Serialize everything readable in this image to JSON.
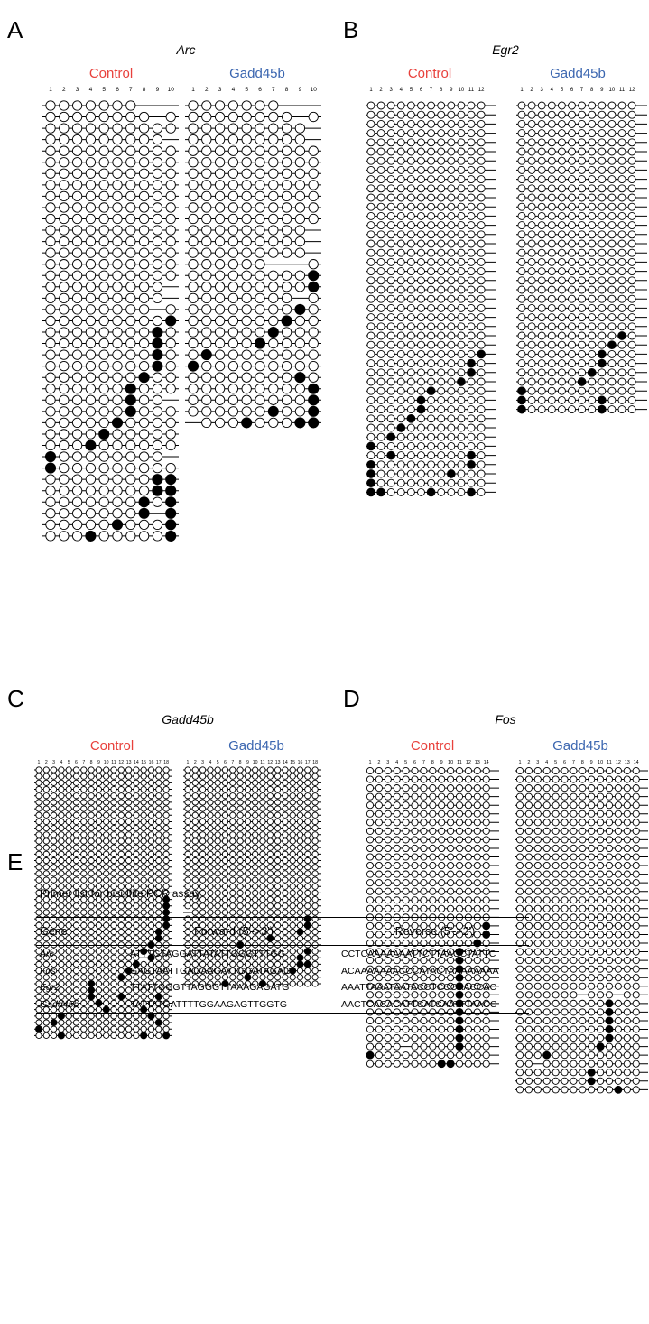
{
  "colors": {
    "control": "#e8413c",
    "gadd45b": "#3b66b0",
    "ink": "#000000"
  },
  "panels": [
    {
      "letter": "A",
      "gene": "Arc",
      "groups": [
        {
          "label": "Control",
          "color_key": "control",
          "numbers": [
            "1",
            "2",
            "3",
            "4",
            "5",
            "6",
            "7",
            "8",
            "9",
            "10"
          ],
          "rows": [
            ".......---",
            "........-.",
            "........._",
            ".........-",
            "........._",
            "..........",
            "..........",
            "..........",
            "..........",
            "..........",
            "..........",
            "..........",
            "..........",
            "..........",
            "..........",
            "..........",
            ".........-",
            ".........-",
            "........-.",
            ".........M",
            "........M.",
            "........M.",
            "........M.",
            "........M.",
            ".......M..",
            "......M...",
            "......M..-",
            "......M...",
            ".....M....",
            "....M.....",
            "...M......",
            "M........-",
            "M.........",
            "........MM",
            "........MM",
            ".......M.M",
            ".......M-M",
            ".....M...M",
            "...M.....M"
          ]
        },
        {
          "label": "Gadd45b",
          "color_key": "gadd45b",
          "numbers": [
            "1",
            "2",
            "3",
            "4",
            "5",
            "6",
            "7",
            "8",
            "9",
            "10"
          ],
          "rows": [
            ".......---",
            "........-.",
            ".........-",
            ".........-",
            "..........",
            "..........",
            "..........",
            "..........",
            "..........",
            "..........",
            "..........",
            ".........-",
            ".........-",
            ".........-",
            "......---.",
            ".........M",
            ".........M",
            "........-.",
            "........M.",
            ".......M..",
            "......M...",
            ".....M....",
            ".M........",
            "M.........",
            "........M.",
            ".........M",
            ".........M",
            "......M..M",
            "-...M...MM"
          ]
        }
      ]
    },
    {
      "letter": "B",
      "gene": "Egr2",
      "groups": [
        {
          "label": "Control",
          "color_key": "control",
          "numbers": [
            "1",
            "2",
            "3",
            "4",
            "5",
            "6",
            "7",
            "8",
            "9",
            "10",
            "11",
            "12"
          ],
          "rows": [
            "............",
            "............",
            "............",
            "............",
            "............",
            "............",
            "............",
            "............",
            "............",
            "............",
            "............",
            "............",
            "............",
            "............",
            "............",
            "............",
            "............",
            "............",
            "............",
            "............",
            "............",
            "............",
            "............",
            "............",
            "............",
            "............",
            "............",
            "...........M",
            "..........M.",
            "..........M.",
            ".........M..",
            "......M.....",
            ".....M......",
            ".....M......",
            "....M.......",
            "...M........",
            "..M.........",
            "M...........",
            "..M.......M.",
            "M.........M.",
            "M.......M...",
            "M...........",
            "MM....M...M."
          ]
        },
        {
          "label": "Gadd45b",
          "color_key": "gadd45b",
          "numbers": [
            "1",
            "2",
            "3",
            "4",
            "5",
            "6",
            "7",
            "8",
            "9",
            "10",
            "11",
            "12"
          ],
          "rows": [
            "............",
            "............",
            "............",
            "............",
            "............",
            "............",
            "............",
            "............",
            "............",
            "............",
            "............",
            "............",
            "............",
            "............",
            "............",
            "............",
            "............",
            "............",
            "............",
            "............",
            "............",
            "............",
            "............",
            "............",
            "............",
            "..........M.",
            ".........M..",
            "........M...",
            "........M...",
            ".......M....",
            "......M.....",
            "M...........",
            "M.......M...",
            "M.......M..."
          ]
        }
      ]
    },
    {
      "letter": "C",
      "gene": "Gadd45b",
      "groups": [
        {
          "label": "Control",
          "color_key": "control",
          "numbers": [
            "1",
            "2",
            "3",
            "4",
            "5",
            "6",
            "7",
            "8",
            "9",
            "10",
            "11",
            "12",
            "13",
            "14",
            "15",
            "16",
            "17",
            "18"
          ],
          "rows": [
            "..................",
            "..................",
            "..................",
            "..................",
            "..................",
            "..................",
            "..................",
            "..................",
            "..................",
            "..................",
            "..................",
            "..................",
            "..................",
            "..................",
            "..................",
            "..................",
            "..................",
            "..................",
            "..................",
            "..................",
            ".................M",
            ".................M",
            ".................M",
            ".................M",
            ".................M",
            "................M.",
            "................M.",
            "...............M..",
            "..............M...",
            "..............-M..",
            ".............M....",
            "............M.....",
            "...........M......",
            ".......M..........",
            ".......M..........",
            ".......M...M....M.",
            "........M.........",
            ".........M....M...",
            "...M...........M..",
            "..M.............M.",
            "M.................",
            "...M..........M..M"
          ]
        },
        {
          "label": "Gadd45b",
          "color_key": "gadd45b",
          "numbers": [
            "1",
            "2",
            "3",
            "4",
            "5",
            "6",
            "7",
            "8",
            "9",
            "10",
            "11",
            "12",
            "13",
            "14",
            "15",
            "16",
            "17",
            "18"
          ],
          "rows": [
            "..................",
            "..................",
            "..................",
            "..................",
            "..................",
            "..................",
            "..................",
            "..................",
            "..................",
            "..................",
            "..................",
            "..................",
            "..................",
            "..................",
            "..................",
            "..................",
            "..................",
            "..................",
            "..................",
            "..................",
            "..................",
            "..................",
            "-.................",
            "................M.",
            "................M.",
            "...............M..",
            "...........M......",
            ".......M..........",
            "................M.",
            "...............M..",
            "...............MM.",
            "..............M...",
            "........M.........",
            ".....M....M......."
          ]
        }
      ]
    },
    {
      "letter": "D",
      "gene": "Fos",
      "groups": [
        {
          "label": "Control",
          "color_key": "control",
          "numbers": [
            "1",
            "2",
            "3",
            "4",
            "5",
            "6",
            "7",
            "8",
            "9",
            "10",
            "11",
            "12",
            "13",
            "14"
          ],
          "rows": [
            "..............",
            "..............",
            "..............",
            "..............",
            "..............",
            "..............",
            "..............",
            "..............",
            "..............",
            "..............",
            "..............",
            "..............",
            "..............",
            "..............",
            "..............",
            "..............",
            "..............",
            "..............",
            ".............M",
            ".............M",
            "............M.",
            "..........M...",
            "..........M...",
            "..........M...",
            "..........M...",
            "..........M...",
            "..........M...",
            "..........M...",
            "..........M...",
            "..........M...",
            "..........M...",
            "..........M...",
            "....-.....M...",
            "M.............",
            "........MM...."
          ]
        },
        {
          "label": "Gadd45b",
          "color_key": "gadd45b",
          "numbers": [
            "1",
            "2",
            "3",
            "4",
            "5",
            "6",
            "7",
            "8",
            "9",
            "10",
            "11",
            "12",
            "13",
            "14"
          ],
          "rows": [
            "..............",
            "..............",
            "..............",
            "..............",
            "..............",
            "..............",
            "..............",
            "..............",
            "..............",
            "..............",
            "..............",
            "..............",
            "..............",
            "..............",
            "..............",
            "..............",
            "..............",
            "..............",
            "..............",
            "..............",
            "..............",
            "..............",
            "..............",
            "..............",
            "..............",
            "..............",
            ".......-...-..",
            "..........M...",
            "..........M...",
            "..........M...",
            "..........M...",
            "..........M...",
            ".........M....",
            "...M..........",
            "..-...........",
            "........M.....",
            "........M.....",
            "...........M.."
          ]
        }
      ]
    }
  ],
  "table": {
    "letter": "E",
    "title": "Primer list for bisulfite PCR assay",
    "headers": [
      "Gene",
      "Forward (5'->3')",
      "Reverse (5'->3')"
    ],
    "rows": [
      {
        "gene": "Arc",
        "forward": "ATTTGTAGGATTATATTGGGTTTGG",
        "reverse": "CCTCAAAAAAATTCTTAACCTATTC"
      },
      {
        "gene": "Fos",
        "forward": "GAGTAATTGAGAAGATTGGATAGAGT",
        "reverse": "ACAAAAAAACCCATACTAAAAAAAA"
      },
      {
        "gene": "Egr2",
        "forward": "TTATTGGGTTAGGGTTAAAGAGATG",
        "reverse": "AAATTAAATAATACCTCCCAACCAC"
      },
      {
        "gene": "Gadd45b",
        "forward": "TATTATGATTTTGGAAGAGTTGGTG",
        "reverse": "AACTCACACATTCATCAATTTAACC"
      }
    ]
  }
}
